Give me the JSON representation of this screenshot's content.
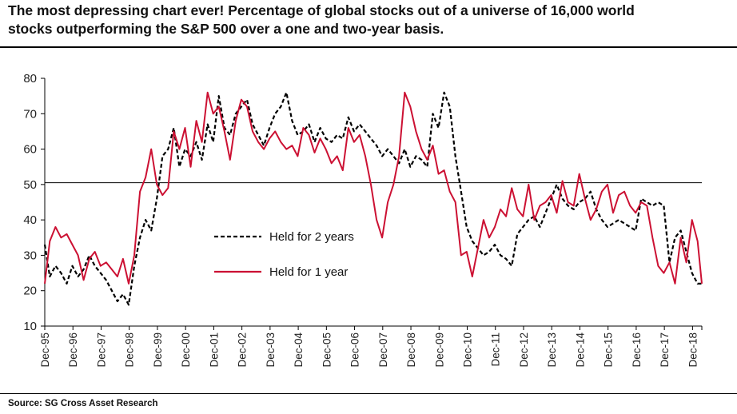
{
  "title": {
    "line1": "The most depressing chart ever! Percentage of global stocks out of a universe of 16,000 world",
    "line2": "stocks outperforming the S&P 500 over a one and two-year basis."
  },
  "source": "Source: SG Cross Asset Research",
  "chart_data": {
    "type": "line",
    "ylim": [
      10,
      80
    ],
    "yticks": [
      10,
      20,
      30,
      40,
      50,
      60,
      70,
      80
    ],
    "xticks": [
      "Dec-95",
      "Dec-96",
      "Dec-97",
      "Dec-98",
      "Dec-99",
      "Dec-00",
      "Dec-01",
      "Dec-02",
      "Dec-03",
      "Dec-04",
      "Dec-05",
      "Dec-06",
      "Dec-07",
      "Dec-08",
      "Dec-09",
      "Dec-10",
      "Dec-11",
      "Dec-12",
      "Dec-13",
      "Dec-14",
      "Dec-15",
      "Dec-16",
      "Dec-17",
      "Dec-18"
    ],
    "xlim": [
      1995.92,
      2019.25
    ],
    "reference_line": 50.5,
    "grid": false,
    "legend_position": "center-left",
    "series": [
      {
        "name": "Held for 2 years",
        "color": "#000000",
        "style": "dashed",
        "x": [
          1995.92,
          1996.1,
          1996.3,
          1996.5,
          1996.7,
          1996.9,
          1997.1,
          1997.3,
          1997.5,
          1997.7,
          1997.9,
          1998.1,
          1998.3,
          1998.5,
          1998.7,
          1998.9,
          1999.1,
          1999.3,
          1999.5,
          1999.7,
          1999.9,
          2000.1,
          2000.3,
          2000.5,
          2000.7,
          2000.9,
          2001.1,
          2001.3,
          2001.5,
          2001.7,
          2001.9,
          2002.1,
          2002.3,
          2002.5,
          2002.7,
          2002.9,
          2003.1,
          2003.3,
          2003.5,
          2003.7,
          2003.9,
          2004.1,
          2004.3,
          2004.5,
          2004.7,
          2004.9,
          2005.1,
          2005.3,
          2005.5,
          2005.7,
          2005.9,
          2006.1,
          2006.3,
          2006.5,
          2006.7,
          2006.9,
          2007.1,
          2007.3,
          2007.5,
          2007.7,
          2007.9,
          2008.1,
          2008.3,
          2008.5,
          2008.7,
          2008.9,
          2009.1,
          2009.3,
          2009.5,
          2009.7,
          2009.9,
          2010.1,
          2010.3,
          2010.5,
          2010.7,
          2010.9,
          2011.1,
          2011.3,
          2011.5,
          2011.7,
          2011.9,
          2012.1,
          2012.3,
          2012.5,
          2012.7,
          2012.9,
          2013.1,
          2013.3,
          2013.5,
          2013.7,
          2013.9,
          2014.1,
          2014.3,
          2014.5,
          2014.7,
          2014.9,
          2015.1,
          2015.3,
          2015.5,
          2015.7,
          2015.9,
          2016.1,
          2016.3,
          2016.5,
          2016.7,
          2016.9,
          2017.1,
          2017.3,
          2017.5,
          2017.7,
          2017.9,
          2018.1,
          2018.3,
          2018.5,
          2018.7,
          2018.9,
          2019.1,
          2019.25
        ],
        "y": [
          33,
          24,
          27,
          25,
          22,
          27,
          24,
          26,
          30,
          27,
          25,
          23,
          20,
          17,
          19,
          16,
          27,
          35,
          40,
          37,
          46,
          58,
          60,
          66,
          55,
          60,
          58,
          62,
          57,
          67,
          62,
          75,
          66,
          64,
          70,
          72,
          74,
          67,
          64,
          61,
          66,
          70,
          72,
          76,
          68,
          64,
          65,
          67,
          62,
          66,
          63,
          62,
          64,
          63,
          69,
          65,
          67,
          65,
          63,
          61,
          58,
          60,
          58,
          56,
          60,
          55,
          58,
          57,
          55,
          70,
          66,
          76,
          72,
          58,
          48,
          38,
          34,
          32,
          30,
          31,
          33,
          30,
          29,
          27,
          36,
          38,
          40,
          41,
          38,
          42,
          46,
          50,
          46,
          44,
          43,
          45,
          46,
          48,
          43,
          40,
          38,
          39,
          40,
          39,
          38,
          37,
          46,
          45,
          44,
          45,
          44,
          28,
          35,
          37,
          31,
          25,
          22,
          22
        ]
      },
      {
        "name": "Held for 1 year",
        "color": "#cc1133",
        "style": "solid",
        "x": [
          1995.92,
          1996.1,
          1996.3,
          1996.5,
          1996.7,
          1996.9,
          1997.1,
          1997.3,
          1997.5,
          1997.7,
          1997.9,
          1998.1,
          1998.3,
          1998.5,
          1998.7,
          1998.9,
          1999.1,
          1999.3,
          1999.5,
          1999.7,
          1999.9,
          2000.1,
          2000.3,
          2000.5,
          2000.7,
          2000.9,
          2001.1,
          2001.3,
          2001.5,
          2001.7,
          2001.9,
          2002.1,
          2002.3,
          2002.5,
          2002.7,
          2002.9,
          2003.1,
          2003.3,
          2003.5,
          2003.7,
          2003.9,
          2004.1,
          2004.3,
          2004.5,
          2004.7,
          2004.9,
          2005.1,
          2005.3,
          2005.5,
          2005.7,
          2005.9,
          2006.1,
          2006.3,
          2006.5,
          2006.7,
          2006.9,
          2007.1,
          2007.3,
          2007.5,
          2007.7,
          2007.9,
          2008.1,
          2008.3,
          2008.5,
          2008.7,
          2008.9,
          2009.1,
          2009.3,
          2009.5,
          2009.7,
          2009.9,
          2010.1,
          2010.3,
          2010.5,
          2010.7,
          2010.9,
          2011.1,
          2011.3,
          2011.5,
          2011.7,
          2011.9,
          2012.1,
          2012.3,
          2012.5,
          2012.7,
          2012.9,
          2013.1,
          2013.3,
          2013.5,
          2013.7,
          2013.9,
          2014.1,
          2014.3,
          2014.5,
          2014.7,
          2014.9,
          2015.1,
          2015.3,
          2015.5,
          2015.7,
          2015.9,
          2016.1,
          2016.3,
          2016.5,
          2016.7,
          2016.9,
          2017.1,
          2017.3,
          2017.5,
          2017.7,
          2017.9,
          2018.1,
          2018.3,
          2018.5,
          2018.7,
          2018.9,
          2019.1,
          2019.25
        ],
        "y": [
          22,
          34,
          38,
          35,
          36,
          33,
          30,
          23,
          29,
          31,
          27,
          28,
          26,
          24,
          29,
          22,
          30,
          48,
          52,
          60,
          50,
          47,
          49,
          65,
          60,
          66,
          55,
          68,
          62,
          76,
          70,
          72,
          65,
          57,
          68,
          74,
          72,
          65,
          62,
          60,
          63,
          65,
          62,
          60,
          61,
          58,
          66,
          64,
          59,
          63,
          60,
          56,
          58,
          54,
          66,
          62,
          64,
          58,
          50,
          40,
          35,
          45,
          50,
          58,
          76,
          72,
          65,
          60,
          57,
          61,
          53,
          54,
          48,
          45,
          30,
          31,
          24,
          32,
          40,
          35,
          38,
          43,
          41,
          49,
          43,
          41,
          50,
          40,
          44,
          45,
          47,
          42,
          51,
          45,
          44,
          53,
          46,
          40,
          43,
          48,
          50,
          42,
          47,
          48,
          44,
          42,
          45,
          44,
          35,
          27,
          25,
          28,
          22,
          35,
          28,
          40,
          34,
          22
        ]
      }
    ]
  }
}
